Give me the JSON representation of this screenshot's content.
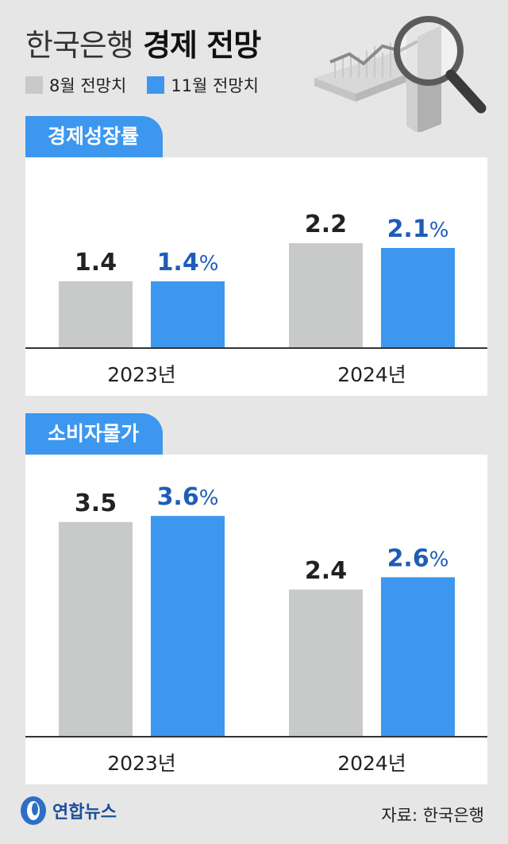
{
  "header": {
    "title_light": "한국은행",
    "title_bold": "경제 전망"
  },
  "legend": [
    {
      "label": "8월 전망치",
      "color": "#c8c9c9"
    },
    {
      "label": "11월 전망치",
      "color": "#3d97ee"
    }
  ],
  "colors": {
    "aug": "#c8c9c9",
    "nov": "#3d97ee",
    "label_bg": "#3d97ee",
    "nov_text": "#1f5cb8",
    "aug_text": "#222222"
  },
  "chart_data": [
    {
      "type": "bar",
      "title": "경제성장률",
      "categories": [
        "2023년",
        "2024년"
      ],
      "series": [
        {
          "name": "8월 전망치",
          "values": [
            1.4,
            2.2
          ],
          "labels": [
            "1.4",
            "2.2"
          ]
        },
        {
          "name": "11월 전망치",
          "values": [
            1.4,
            2.1
          ],
          "labels": [
            "1.4",
            "2.1"
          ],
          "unit": "%"
        }
      ],
      "ylim": [
        0,
        4.0
      ]
    },
    {
      "type": "bar",
      "title": "소비자물가",
      "categories": [
        "2023년",
        "2024년"
      ],
      "series": [
        {
          "name": "8월 전망치",
          "values": [
            3.5,
            2.4
          ],
          "labels": [
            "3.5",
            "2.4"
          ]
        },
        {
          "name": "11월 전망치",
          "values": [
            3.6,
            2.6
          ],
          "labels": [
            "3.6",
            "2.6"
          ],
          "unit": "%"
        }
      ],
      "ylim": [
        0,
        4.6
      ]
    }
  ],
  "footer": {
    "logo": "연합뉴스",
    "source": "자료: 한국은행"
  }
}
